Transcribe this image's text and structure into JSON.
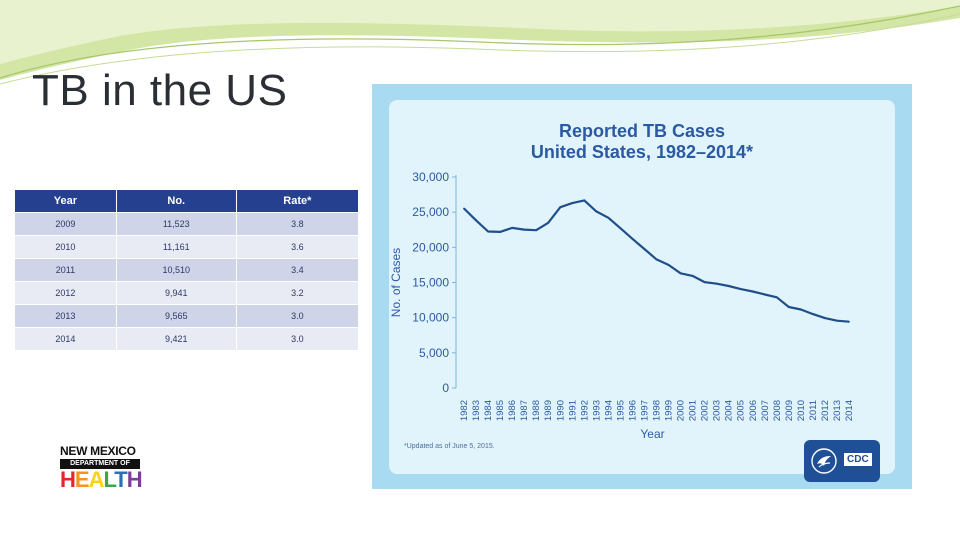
{
  "slide": {
    "title": "TB in the US"
  },
  "table": {
    "headers": [
      "Year",
      "No.",
      "Rate*"
    ],
    "rows": [
      [
        "2009",
        "11,523",
        "3.8"
      ],
      [
        "2010",
        "11,161",
        "3.6"
      ],
      [
        "2011",
        "10,510",
        "3.4"
      ],
      [
        "2012",
        "9,941",
        "3.2"
      ],
      [
        "2013",
        "9,565",
        "3.0"
      ],
      [
        "2014",
        "9,421",
        "3.0"
      ]
    ]
  },
  "logo": {
    "line1": "NEW MEXICO",
    "line2": "DEPARTMENT OF",
    "line3": "HEALTH",
    "letter_colors": [
      "#e3262b",
      "#f7941d",
      "#fcd116",
      "#3aa84a",
      "#2b6fb6",
      "#7b3f98"
    ]
  },
  "cdc": {
    "label": "CDC",
    "icon": "hhs-eagle-icon"
  },
  "chart_data": {
    "type": "line",
    "title_line1": "Reported TB Cases",
    "title_line2": "United States, 1982–2014*",
    "xlabel": "Year",
    "ylabel": "No. of Cases",
    "footnote": "*Updated as of June 5, 2015.",
    "ylim": [
      0,
      30000
    ],
    "yticks": [
      "0",
      "5,000",
      "10,000",
      "15,000",
      "20,000",
      "25,000",
      "30,000"
    ],
    "ytick_values": [
      0,
      5000,
      10000,
      15000,
      20000,
      25000,
      30000
    ],
    "x": [
      "1982",
      "1983",
      "1984",
      "1985",
      "1986",
      "1987",
      "1988",
      "1989",
      "1990",
      "1991",
      "1992",
      "1993",
      "1994",
      "1995",
      "1996",
      "1997",
      "1998",
      "1999",
      "2000",
      "2001",
      "2002",
      "2003",
      "2004",
      "2005",
      "2006",
      "2007",
      "2008",
      "2009",
      "2010",
      "2011",
      "2012",
      "2013",
      "2014"
    ],
    "series": [
      {
        "values": [
          25520,
          23846,
          22255,
          22201,
          22768,
          22517,
          22436,
          23495,
          25701,
          26283,
          26673,
          25102,
          24206,
          22727,
          21210,
          19751,
          18287,
          17500,
          16309,
          15945,
          15055,
          14835,
          14500,
          14065,
          13727,
          13288,
          12895,
          11523,
          11161,
          10510,
          9941,
          9565,
          9421
        ]
      }
    ],
    "line_color": "#1f4f8a",
    "grid": false,
    "legend": "none"
  }
}
